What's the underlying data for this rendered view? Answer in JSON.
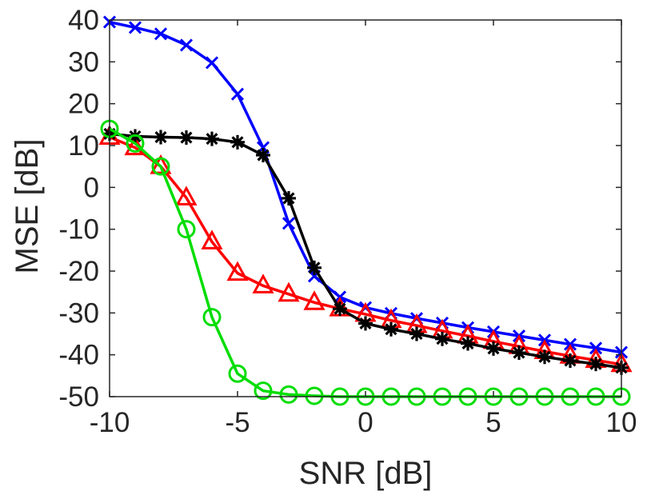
{
  "chart_data": {
    "type": "line",
    "title": "",
    "xlabel": "SNR [dB]",
    "ylabel": "MSE [dB]",
    "xlim": [
      -10,
      10
    ],
    "ylim": [
      -50,
      40
    ],
    "xticks": [
      -10,
      -5,
      0,
      5,
      10
    ],
    "yticks": [
      40,
      30,
      20,
      10,
      0,
      -10,
      -20,
      -30,
      -40,
      -50
    ],
    "xtick_labels": [
      "-10",
      "-5",
      "0",
      "5",
      "10"
    ],
    "ytick_labels": [
      "40",
      "30",
      "20",
      "10",
      "0",
      "-10",
      "-20",
      "-30",
      "-40",
      "-50"
    ],
    "grid": false,
    "x": [
      -10,
      -9,
      -8,
      -7,
      -6,
      -5,
      -4,
      -3,
      -2,
      -1,
      0,
      1,
      2,
      3,
      4,
      5,
      6,
      7,
      8,
      9,
      10
    ],
    "series": [
      {
        "name": "blue-x",
        "color": "#0000ff",
        "marker": "x",
        "values": [
          39.5,
          38.2,
          36.7,
          34.0,
          29.8,
          22.3,
          9.5,
          -8.6,
          -21.2,
          -26.2,
          -28.7,
          -30.1,
          -31.3,
          -32.4,
          -33.5,
          -34.5,
          -35.5,
          -36.5,
          -37.5,
          -38.4,
          -39.4
        ]
      },
      {
        "name": "red-triangle",
        "color": "#ff0000",
        "marker": "triangle",
        "values": [
          12.0,
          9.5,
          5.0,
          -2.5,
          -13.0,
          -20.5,
          -23.5,
          -25.5,
          -27.5,
          -29.0,
          -30.3,
          -31.8,
          -33.0,
          -34.3,
          -35.5,
          -36.8,
          -38.0,
          -39.2,
          -40.3,
          -41.3,
          -42.3
        ]
      },
      {
        "name": "black-star",
        "color": "#000000",
        "marker": "star",
        "values": [
          12.8,
          12.2,
          12.0,
          11.9,
          11.6,
          10.8,
          7.7,
          -2.6,
          -19.2,
          -29.0,
          -32.5,
          -33.9,
          -35.0,
          -36.2,
          -37.3,
          -38.5,
          -39.5,
          -40.5,
          -41.4,
          -42.2,
          -43.1
        ]
      },
      {
        "name": "green-circle",
        "color": "#00dd00",
        "marker": "circle",
        "values": [
          14.0,
          10.5,
          5.0,
          -10.0,
          -31.0,
          -44.5,
          -48.6,
          -49.5,
          -49.8,
          -50.0,
          -50.0,
          -50.0,
          -50.0,
          -50.0,
          -50.0,
          -50.0,
          -50.0,
          -50.0,
          -50.0,
          -50.0,
          -50.0
        ]
      }
    ]
  }
}
